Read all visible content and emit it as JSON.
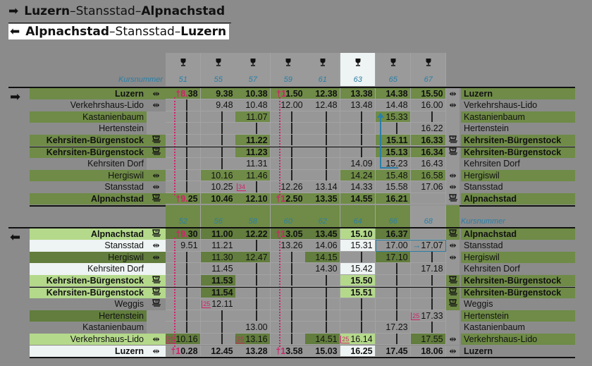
{
  "titles": [
    {
      "arrow": "right-arrow",
      "glyph": "➡",
      "a": "Luzern",
      "sep1": "–",
      "mid": "Stansstad",
      "sep2": "–",
      "b": "Alpnachstad",
      "selected": false
    },
    {
      "arrow": "left-arrow",
      "glyph": "⬅",
      "a": "Alpnachstad",
      "sep1": "–",
      "mid": "Stansstad",
      "sep2": "–",
      "b": "Luzern",
      "selected": true
    }
  ],
  "kurs_label": "Kursnummer",
  "icons": {
    "ferry_train": "⇹",
    "direction_right": "➡",
    "direction_left": "⬅",
    "wine_glass": "🍷"
  },
  "colors": {
    "green": "#6f8b47",
    "dark_green": "#627d3d",
    "light_green": "#b4d98b",
    "white": "#eef3f3",
    "kurs_blue": "#2a7fa6",
    "pink": "#d0236a"
  },
  "upper": {
    "direction": "right",
    "courses": [
      "51",
      "55",
      "57",
      "59",
      "61",
      "63",
      "65",
      "67"
    ],
    "header_icon": "wine-glass",
    "highlight_course": "63",
    "rows": [
      {
        "label": "Luzern",
        "bold": true,
        "icon": "ferry-train",
        "style": "g",
        "right_style": "g",
        "fill": "gggggggg",
        "cells": [
          "†8.38",
          "9.38",
          "10.38",
          "†11.50",
          "12.38",
          "13.38",
          "14.38",
          "15.50"
        ]
      },
      {
        "label": "Verkehrshaus-Lido",
        "bold": false,
        "icon": "ferry-train",
        "style": "n",
        "right_style": "n",
        "fill": "--------",
        "cells": [
          "|",
          "9.48",
          "10.48",
          "12.00",
          "12.48",
          "13.48",
          "14.48",
          "16.00"
        ]
      },
      {
        "label": "Kastanienbaum",
        "bold": false,
        "icon": "",
        "style": "g",
        "right_style": "g",
        "fill": "--g---g-",
        "cells": [
          "|",
          "|",
          "11.07",
          "|",
          "|",
          "|",
          "15.33",
          "|"
        ]
      },
      {
        "label": "Hertenstein",
        "bold": false,
        "icon": "",
        "style": "n",
        "right_style": "n",
        "fill": "--------",
        "cells": [
          "|",
          "|",
          "|",
          "|",
          "|",
          "|",
          "|",
          "16.22"
        ]
      },
      {
        "label": "Kehrsiten-Bürgenstock",
        "bold": true,
        "icon": "funicular",
        "style": "g",
        "right_style": "g",
        "fill": "--g---gg",
        "cells": [
          "|",
          "|",
          "11.22",
          "|",
          "|",
          "|",
          "15.11",
          "16.33"
        ]
      },
      {
        "label": "Kehrsiten-Bürgenstock",
        "bold": true,
        "icon": "funicular",
        "style": "g",
        "right_style": "g",
        "fill": "--g---gg",
        "cells": [
          "|",
          "|",
          "11.23",
          "|",
          "|",
          "|",
          "15.13",
          "16.34"
        ]
      },
      {
        "label": "Kehrsiten Dorf",
        "bold": false,
        "icon": "",
        "style": "n",
        "right_style": "n",
        "fill": "--------",
        "cells": [
          "|",
          "|",
          "11.31",
          "|",
          "|",
          "14.09",
          "15.23",
          "16.43"
        ]
      },
      {
        "label": "Hergiswil",
        "bold": false,
        "icon": "ferry-train",
        "style": "g",
        "right_style": "g",
        "fill": "-gg--ggg",
        "cells": [
          "|",
          "10.16",
          "11.46",
          "|",
          "|",
          "14.24",
          "15.48",
          "16.58"
        ]
      },
      {
        "label": "Stansstad",
        "bold": false,
        "icon": "ferry-train",
        "style": "n",
        "right_style": "n",
        "fill": "--------",
        "cells": [
          "|",
          "10.25",
          "[34]|",
          "12.26",
          "13.14",
          "14.33",
          "15.58",
          "17.06"
        ]
      },
      {
        "label": "Alpnachstad",
        "bold": true,
        "icon": "funicular",
        "style": "g",
        "right_style": "g",
        "fill": "ggggggg-",
        "cells": [
          "†9.25",
          "10.46",
          "12.10",
          "†12.50",
          "13.35",
          "14.55",
          "16.21",
          ""
        ]
      }
    ]
  },
  "lower": {
    "direction": "left",
    "courses": [
      "52",
      "56",
      "58",
      "60",
      "62",
      "64",
      "66",
      "68"
    ],
    "rows": [
      {
        "label": "Alpnachstad",
        "bold": true,
        "icon": "funicular",
        "style": "l",
        "right_style": "g",
        "fill": "dddddld-",
        "cells": [
          "†9.30",
          "11.00",
          "12.22",
          "†13.05",
          "13.45",
          "15.10",
          "16.37",
          ""
        ]
      },
      {
        "label": "Stansstad",
        "bold": false,
        "icon": "ferry-train",
        "style": "w",
        "right_style": "n",
        "fill": "-----w--",
        "cells": [
          "9.51",
          "11.21",
          "|",
          "13.26",
          "14.06",
          "15.31",
          "17.00",
          "→17.07"
        ]
      },
      {
        "label": "Hergiswil",
        "bold": false,
        "icon": "ferry-train",
        "style": "d",
        "right_style": "g",
        "fill": "-dd-d-d-",
        "cells": [
          "|",
          "11.30",
          "12.47",
          "|",
          "14.15",
          "|",
          "17.10",
          "|"
        ]
      },
      {
        "label": "Kehrsiten Dorf",
        "bold": false,
        "icon": "",
        "style": "w",
        "right_style": "n",
        "fill": "-----w--",
        "cells": [
          "|",
          "11.45",
          "|",
          "|",
          "14.30",
          "15.42",
          "|",
          "17.18"
        ]
      },
      {
        "label": "Kehrsiten-Bürgenstock",
        "bold": true,
        "icon": "funicular",
        "style": "l",
        "right_style": "g",
        "fill": "-d---l--",
        "cells": [
          "|",
          "11.53",
          "|",
          "|",
          "|",
          "15.50",
          "|",
          "|"
        ]
      },
      {
        "label": "Kehrsiten-Bürgenstock",
        "bold": true,
        "icon": "funicular",
        "style": "l",
        "right_style": "g",
        "fill": "-d---l--",
        "cells": [
          "|",
          "11.54",
          "|",
          "|",
          "|",
          "15.51",
          "|",
          "|"
        ]
      },
      {
        "label": "Weggis",
        "bold": false,
        "icon": "funicular",
        "style": "n",
        "right_style": "n",
        "fill": "--------",
        "cells": [
          "|",
          "[25]12.11",
          "|",
          "|",
          "|",
          "|",
          "|",
          "|"
        ]
      },
      {
        "label": "Hertenstein",
        "bold": false,
        "icon": "",
        "style": "d",
        "right_style": "g",
        "fill": "--------",
        "cells": [
          "|",
          "|",
          "|",
          "|",
          "|",
          "|",
          "|",
          "[25]17.33"
        ]
      },
      {
        "label": "Kastanienbaum",
        "bold": false,
        "icon": "",
        "style": "n",
        "right_style": "n",
        "fill": "--------",
        "cells": [
          "|",
          "|",
          "13.00",
          "|",
          "|",
          "|",
          "17.23",
          "|"
        ]
      },
      {
        "label": "Verkehrshaus-Lido",
        "bold": false,
        "icon": "ferry-train",
        "style": "l",
        "right_style": "g",
        "fill": "d-d-dl-d",
        "cells": [
          "[25]10.16",
          "|",
          "[25]13.16",
          "|",
          "14.51",
          "[25]16.14",
          "|",
          "17.55"
        ]
      },
      {
        "label": "Luzern",
        "bold": true,
        "icon": "ferry-train",
        "style": "w",
        "right_style": "n",
        "fill": "-----w--",
        "cells": [
          "†10.28",
          "12.45",
          "13.28",
          "†13.58",
          "15.03",
          "16.25",
          "17.45",
          "18.06"
        ]
      }
    ]
  }
}
